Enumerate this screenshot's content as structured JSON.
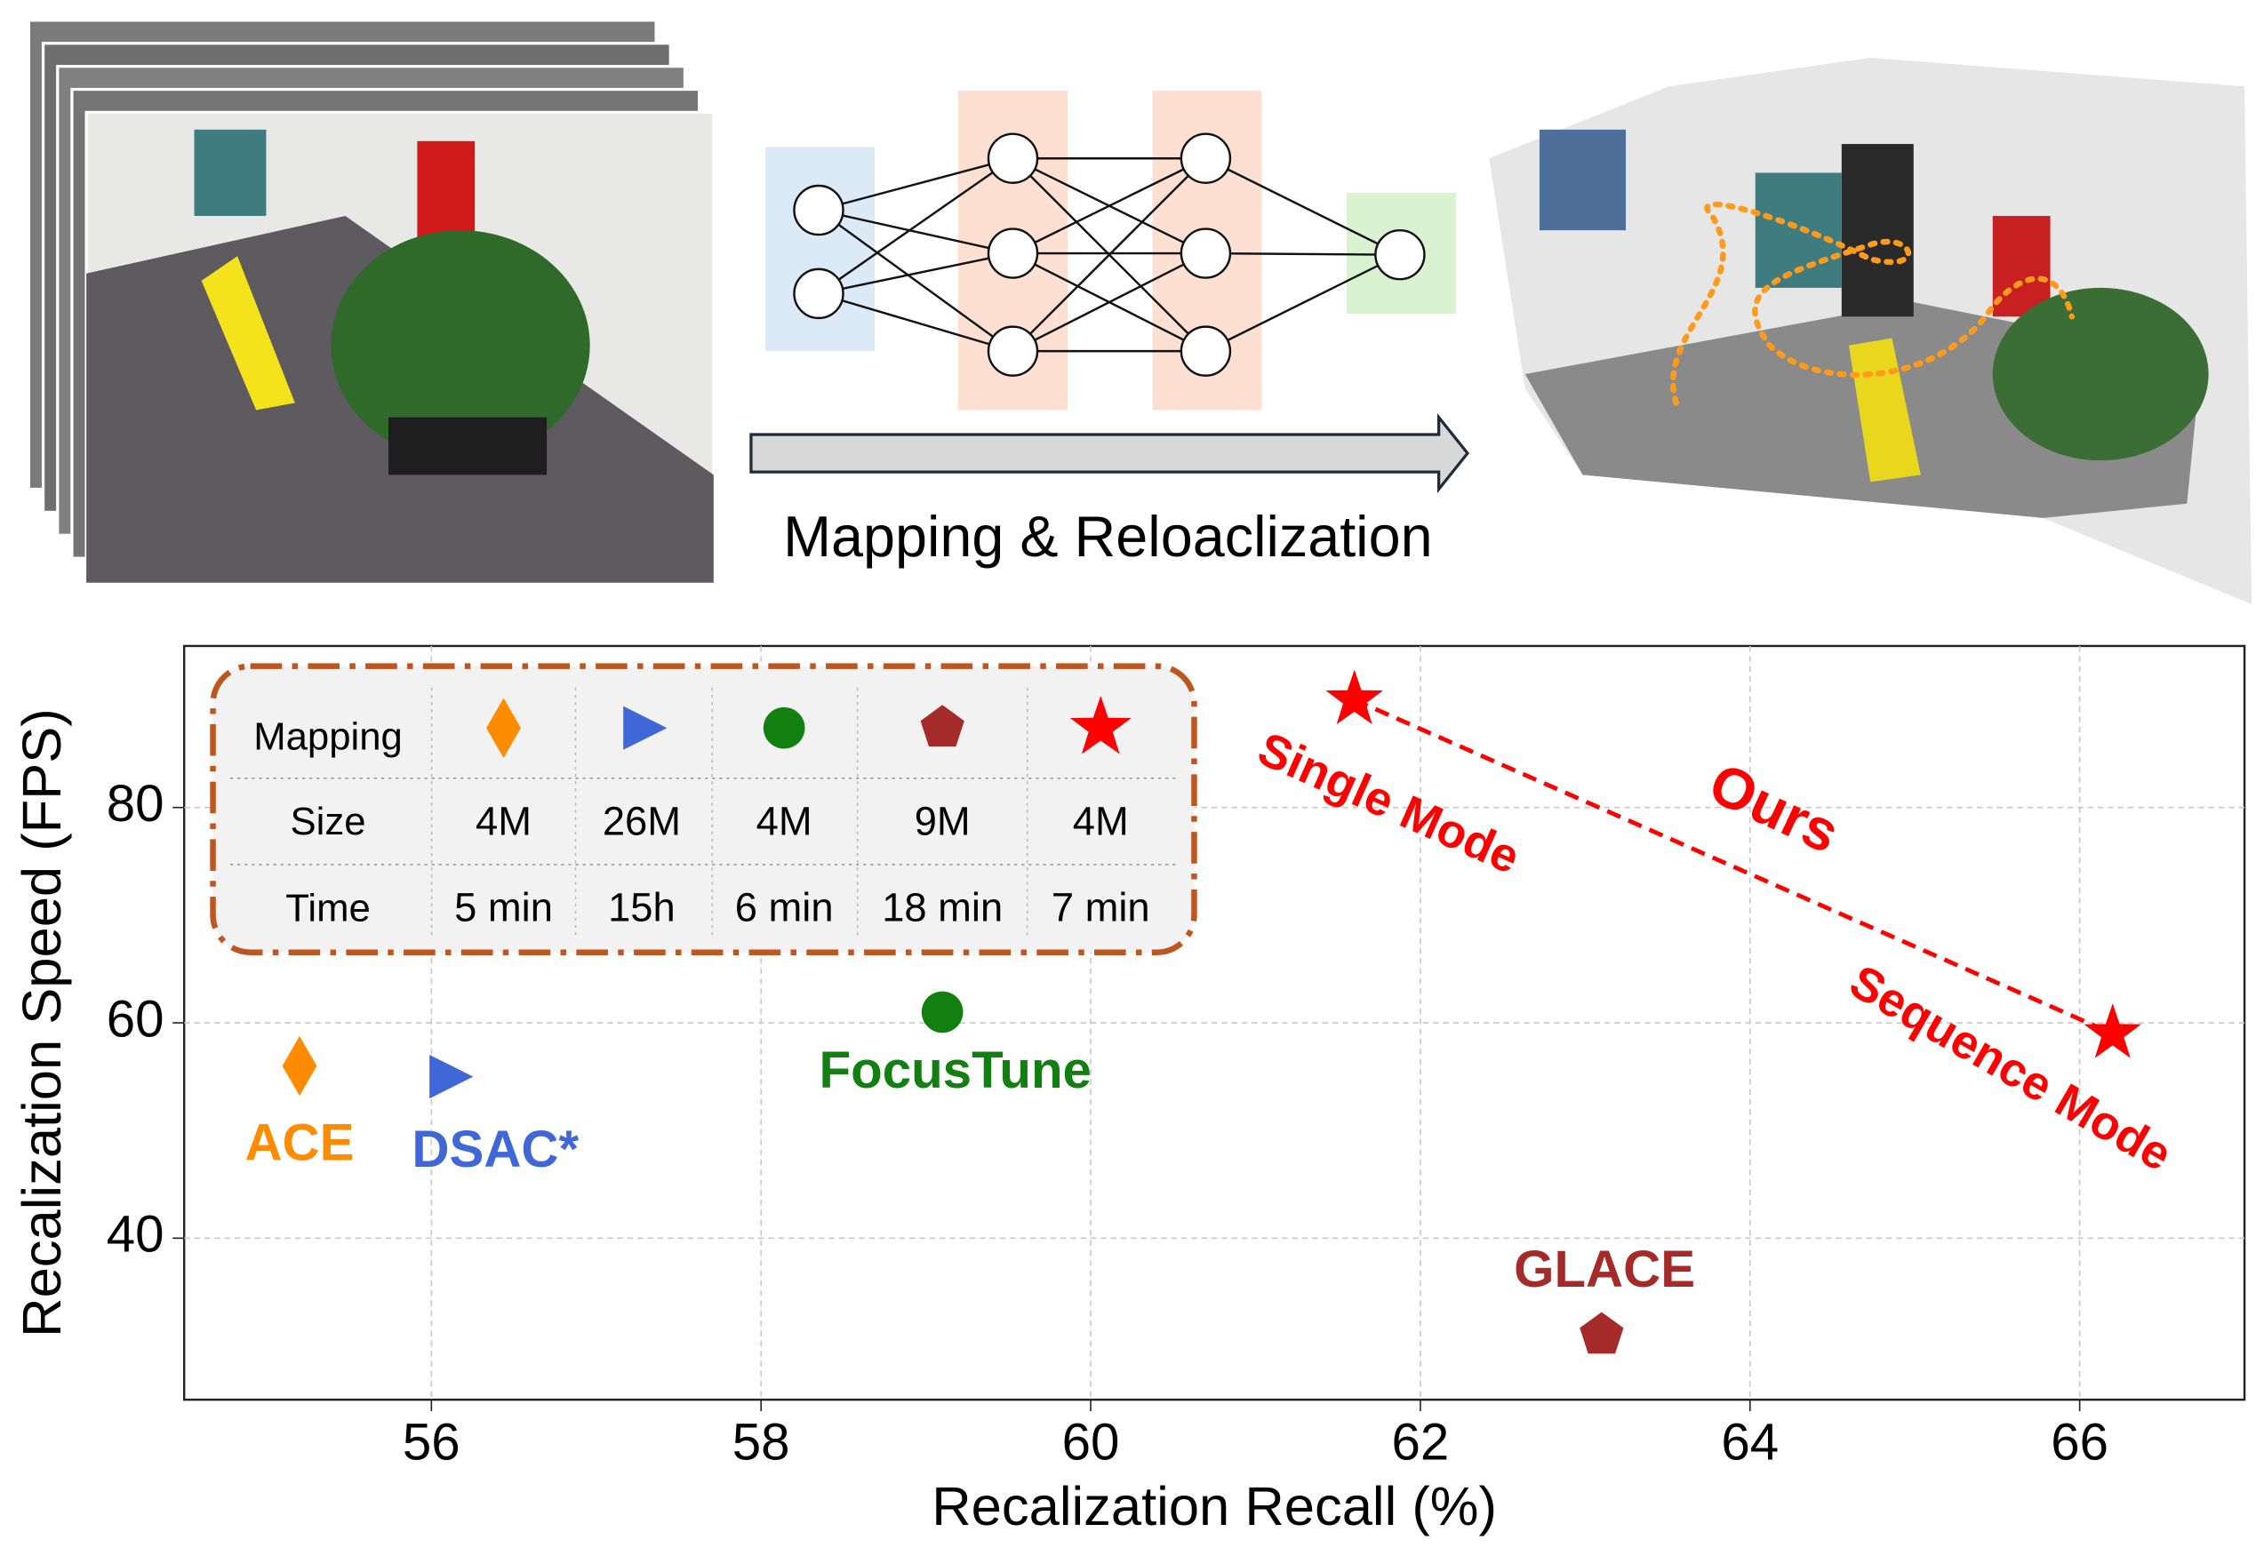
{
  "caption": "Mapping & Reloaclization",
  "table": {
    "rows": [
      [
        "Mapping"
      ],
      [
        "Size",
        "4M",
        "26M",
        "4M",
        "9M",
        "4M"
      ],
      [
        "Time",
        "5 min",
        "15h",
        "6 min",
        "18 min",
        "7 min"
      ]
    ]
  },
  "chart_data": {
    "type": "scatter",
    "xlabel": "Recalization Recall (%)",
    "ylabel": "Recalization Speed (FPS)",
    "xlim": [
      54.5,
      67
    ],
    "xticks": [
      56,
      58,
      60,
      62,
      64,
      66
    ],
    "ylim": [
      25,
      95
    ],
    "yticks": [
      40,
      60,
      80
    ],
    "grid": true,
    "series": [
      {
        "name": "ACE",
        "color": "#ff8c00",
        "marker": "diamond",
        "x": [
          55.2
        ],
        "values": [
          56
        ]
      },
      {
        "name": "DSAC*",
        "color": "#3f67d8",
        "marker": "triangle",
        "x": [
          56.1
        ],
        "values": [
          55
        ]
      },
      {
        "name": "FocusTune",
        "color": "#118011",
        "marker": "circle",
        "x": [
          59.1
        ],
        "values": [
          61
        ]
      },
      {
        "name": "GLACE",
        "color": "#a52a2a",
        "marker": "pentagon",
        "x": [
          63.1
        ],
        "values": [
          31
        ]
      },
      {
        "name": "Ours",
        "color": "#ff0000",
        "marker": "star",
        "x": [
          61.6,
          66.2
        ],
        "values": [
          90,
          59
        ],
        "point_labels": [
          "Single Mode",
          "Sequence Mode"
        ]
      }
    ]
  }
}
